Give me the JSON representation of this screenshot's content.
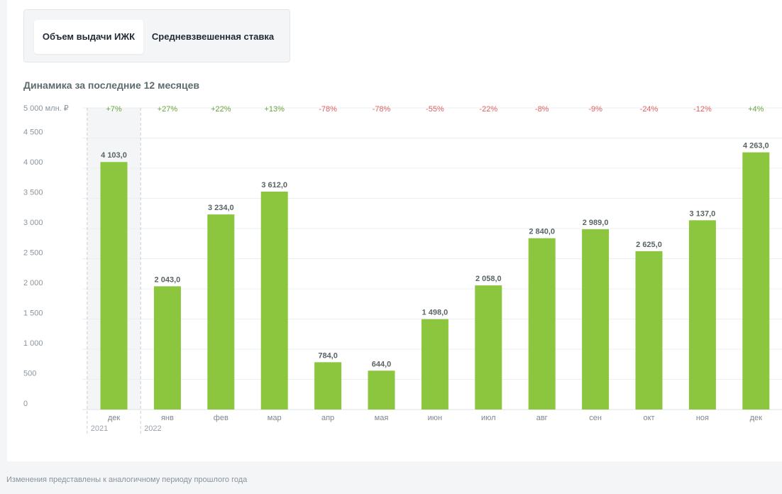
{
  "tabs": [
    {
      "label": "Объем выдачи ИЖК",
      "active": true
    },
    {
      "label": "Средневзвешенная ставка",
      "active": false
    }
  ],
  "subtitle": "Динамика за последние 12 месяцев",
  "footer": "Изменения представлены к аналогичному периоду прошлого года",
  "colors": {
    "bar": "#8cc63f",
    "positive": "#6aa43b",
    "negative": "#e06060",
    "highlight": "#f4f5f6"
  },
  "chart_data": {
    "type": "bar",
    "title": "",
    "ylabel": "",
    "y_unit_label": "5 000 млн. ₽",
    "ylim": [
      0,
      5000
    ],
    "yticks": [
      "0",
      "500",
      "1 000",
      "1 500",
      "2 000",
      "2 500",
      "3 000",
      "3 500",
      "4 000",
      "4 500"
    ],
    "categories": [
      "дек",
      "янв",
      "фев",
      "мар",
      "апр",
      "мая",
      "июн",
      "июл",
      "авг",
      "сен",
      "окт",
      "ноя",
      "дек"
    ],
    "values": [
      4103.0,
      2043.0,
      3234.0,
      3612.0,
      784.0,
      644.0,
      1498.0,
      2058.0,
      2840.0,
      2989.0,
      2625.0,
      3137.0,
      4263.0
    ],
    "value_labels": [
      "4 103,0",
      "2 043,0",
      "3 234,0",
      "3 612,0",
      "784,0",
      "644,0",
      "1 498,0",
      "2 058,0",
      "2 840,0",
      "2 989,0",
      "2 625,0",
      "3 137,0",
      "4 263,0"
    ],
    "changes": [
      "+7%",
      "+27%",
      "+22%",
      "+13%",
      "-78%",
      "-78%",
      "-55%",
      "-22%",
      "-8%",
      "-9%",
      "-24%",
      "-12%",
      "+4%"
    ],
    "years": [
      {
        "label": "2021",
        "start_index": 0
      },
      {
        "label": "2022",
        "start_index": 1
      }
    ],
    "highlight_index": 0,
    "grid": true
  }
}
